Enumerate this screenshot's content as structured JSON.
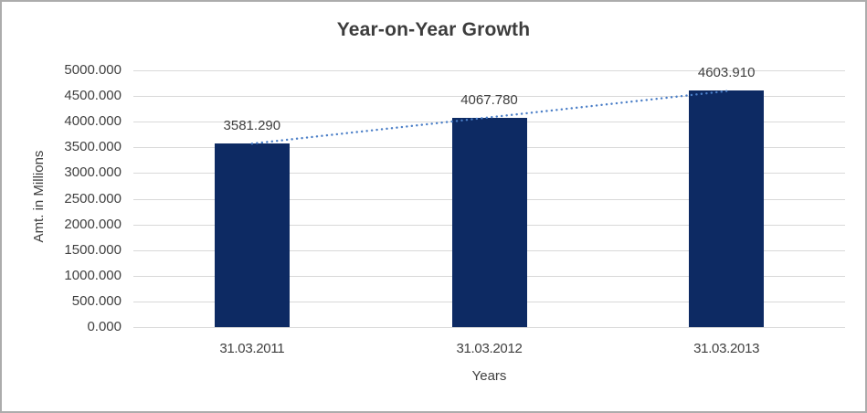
{
  "chart_data": {
    "type": "bar",
    "title": "Year-on-Year Growth",
    "xlabel": "Years",
    "ylabel": "Amt. in Millions",
    "categories": [
      "31.03.2011",
      "31.03.2012",
      "31.03.2013"
    ],
    "values": [
      3581.29,
      4067.78,
      4603.91
    ],
    "data_labels": [
      "3581.290",
      "4067.780",
      "4603.910"
    ],
    "ylim": [
      0,
      5000
    ],
    "ytick_step": 500,
    "ytick_labels": [
      "0.000",
      "500.000",
      "1000.000",
      "1500.000",
      "2000.000",
      "2500.000",
      "3000.000",
      "3500.000",
      "4000.000",
      "4500.000",
      "5000.000"
    ],
    "grid": true,
    "legend": "none",
    "trendline": {
      "type": "linear",
      "style": "dotted"
    },
    "colors": {
      "bar": "#0D2A63",
      "trendline": "#4A7EC7",
      "gridline": "#D9D9D9",
      "text": "#404040",
      "title": "#3C3C3C",
      "border": "#ACACAC",
      "background": "#FFFFFF"
    }
  }
}
